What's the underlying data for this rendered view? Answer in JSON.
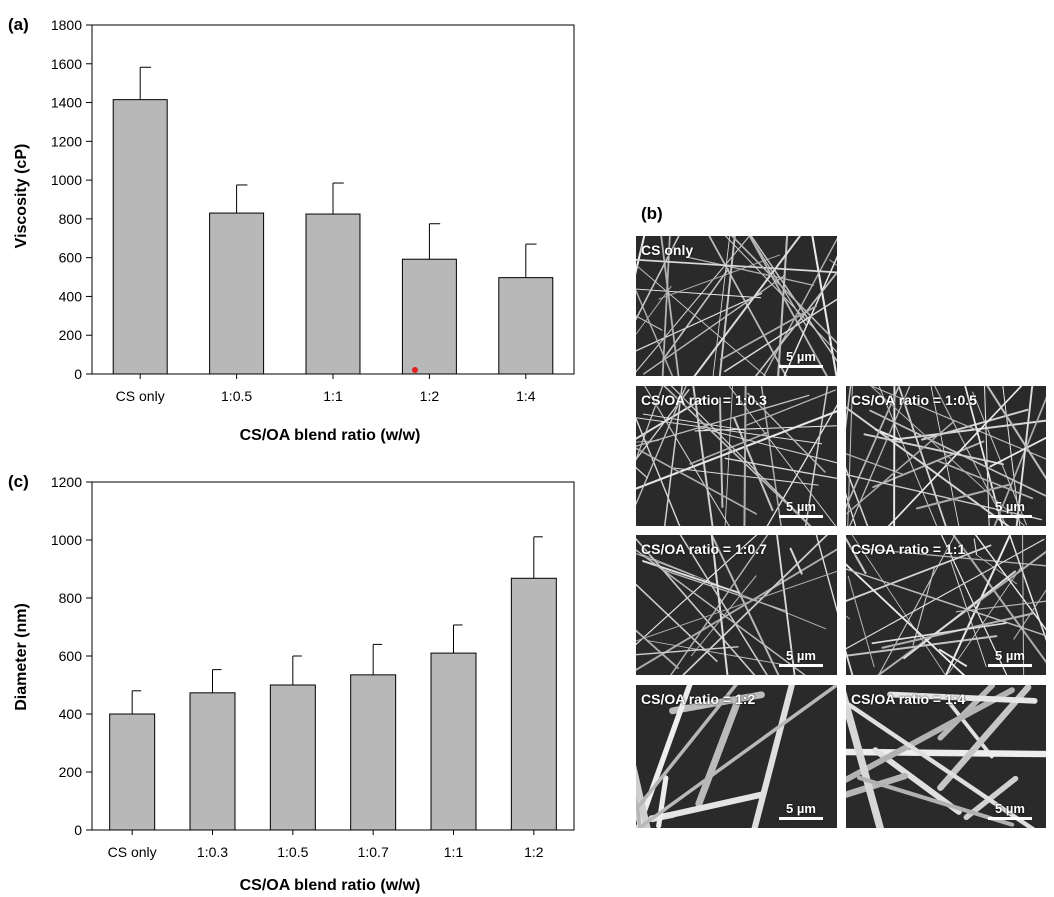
{
  "chart_data": [
    {
      "panel": "(a)",
      "type": "bar",
      "categories": [
        "CS only",
        "1:0.5",
        "1:1",
        "1:2",
        "1:4"
      ],
      "values": [
        1415,
        830,
        825,
        592,
        497
      ],
      "errors": [
        167,
        145,
        160,
        183,
        173
      ],
      "xlabel": "CS/OA blend ratio (w/w)",
      "ylabel": "Viscosity (cP)",
      "ylim": [
        0,
        1800
      ],
      "yticks": [
        0,
        200,
        400,
        600,
        800,
        1000,
        1200,
        1400,
        1600,
        1800
      ],
      "grid": false,
      "bar_color": "#b8b8b8"
    },
    {
      "panel": "(c)",
      "type": "bar",
      "categories": [
        "CS only",
        "1:0.3",
        "1:0.5",
        "1:0.7",
        "1:1",
        "1:2"
      ],
      "values": [
        400,
        473,
        500,
        535,
        610,
        868
      ],
      "errors": [
        80,
        80,
        100,
        105,
        97,
        143
      ],
      "xlabel": "CS/OA blend ratio (w/w)",
      "ylabel": "Diameter (nm)",
      "ylim": [
        0,
        1200
      ],
      "yticks": [
        0,
        200,
        400,
        600,
        800,
        1000,
        1200
      ],
      "grid": false,
      "bar_color": "#b8b8b8"
    }
  ],
  "panel_b": {
    "label": "(b)",
    "images": [
      {
        "title": "CS only",
        "scale": "5 µm",
        "density": "medium"
      },
      {
        "title": "CS/OA ratio = 1:0.3",
        "scale": "5 µm",
        "density": "medium"
      },
      {
        "title": "CS/OA ratio = 1:0.5",
        "scale": "5 µm",
        "density": "medium"
      },
      {
        "title": "CS/OA ratio = 1:0.7",
        "scale": "5 µm",
        "density": "sparse"
      },
      {
        "title": "CS/OA ratio = 1:1",
        "scale": "5 µm",
        "density": "medium"
      },
      {
        "title": "CS/OA ratio = 1:2",
        "scale": "5 µm",
        "density": "thick"
      },
      {
        "title": "CS/OA ratio = 1:4",
        "scale": "5 µm",
        "density": "thick"
      }
    ]
  },
  "colors": {
    "bar": "#b8b8b8",
    "axis": "#000000",
    "sem_background": "#2a2a2a",
    "fiber": "#cfcfcf",
    "marker": "#e02020"
  }
}
